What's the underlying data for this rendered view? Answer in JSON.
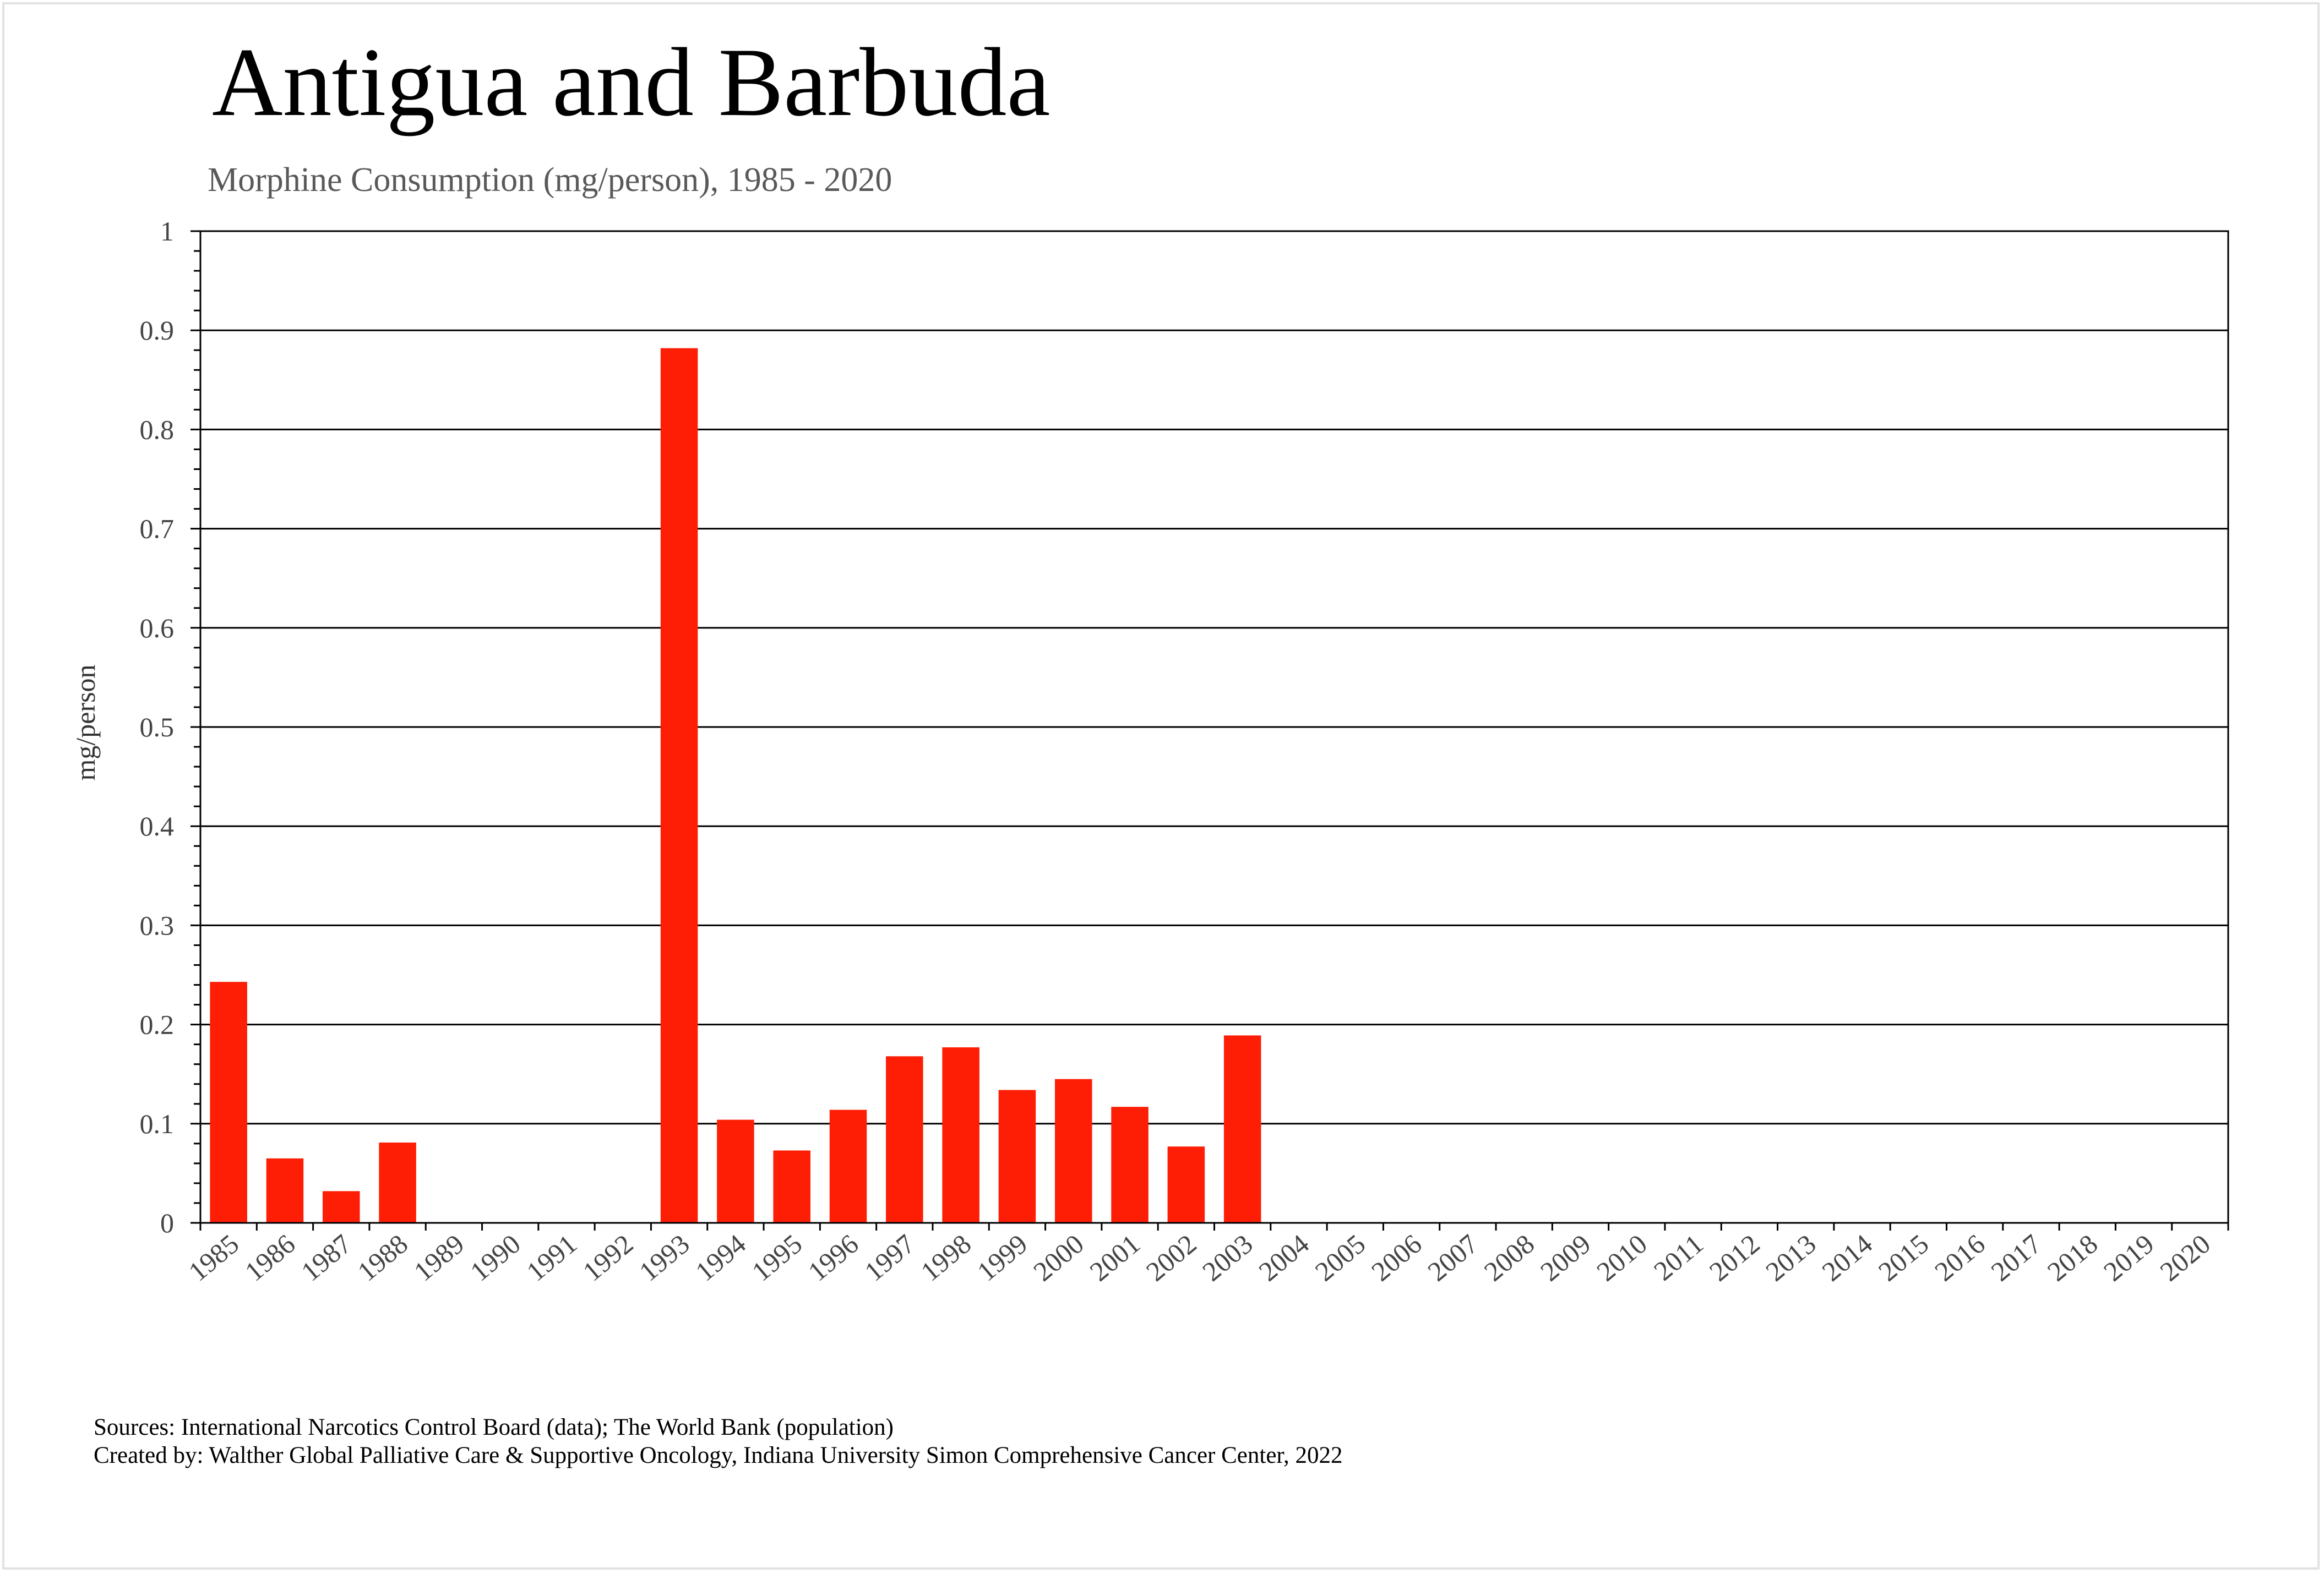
{
  "chart_data": {
    "type": "bar",
    "title": "Antigua and Barbuda",
    "subtitle": "Morphine Consumption (mg/person), 1985 - 2020",
    "xlabel": "",
    "ylabel": "mg/person",
    "ylim": [
      0,
      1
    ],
    "yticks": [
      "0",
      "0.1",
      "0.2",
      "0.3",
      "0.4",
      "0.5",
      "0.6",
      "0.7",
      "0.8",
      "0.9",
      "1"
    ],
    "grid": true,
    "bar_color": "#fe1e05",
    "categories": [
      "1985",
      "1986",
      "1987",
      "1988",
      "1989",
      "1990",
      "1991",
      "1992",
      "1993",
      "1994",
      "1995",
      "1996",
      "1997",
      "1998",
      "1999",
      "2000",
      "2001",
      "2002",
      "2003",
      "2004",
      "2005",
      "2006",
      "2007",
      "2008",
      "2009",
      "2010",
      "2011",
      "2012",
      "2013",
      "2014",
      "2015",
      "2016",
      "2017",
      "2018",
      "2019",
      "2020"
    ],
    "values": [
      0.243,
      0.065,
      0.032,
      0.081,
      0,
      0,
      0,
      0,
      0.882,
      0.104,
      0.073,
      0.114,
      0.168,
      0.177,
      0.134,
      0.145,
      0.117,
      0.077,
      0.189,
      0,
      0,
      0,
      0,
      0,
      0,
      0,
      0,
      0,
      0,
      0,
      0,
      0,
      0,
      0,
      0,
      0
    ]
  },
  "footer": {
    "sources": "Sources: International Narcotics Control Board (data); The World Bank (population)",
    "created_by": "Created by: Walther  Global Palliative Care & Supportive Oncology, Indiana University Simon Comprehensive Cancer Center, 2022"
  }
}
